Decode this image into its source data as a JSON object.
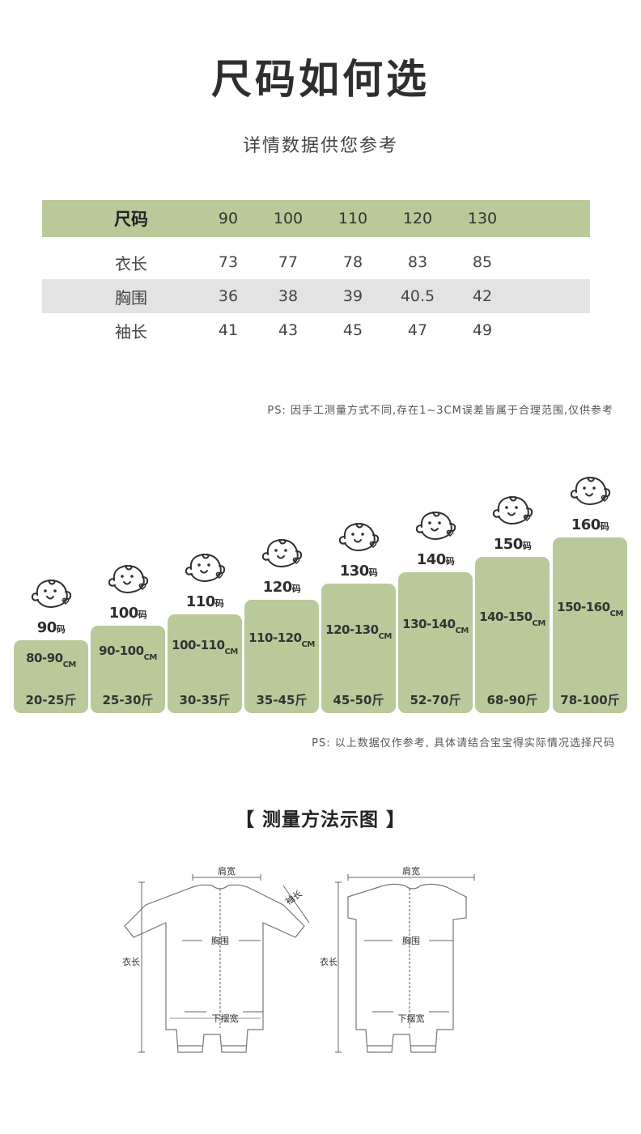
{
  "title": "尺码如何选",
  "subtitle": "详情数据供您参考",
  "size_table": {
    "header": {
      "label": "尺码",
      "values": [
        "90",
        "100",
        "110",
        "120",
        "130"
      ]
    },
    "rows": [
      {
        "label": "衣长",
        "values": [
          "73",
          "77",
          "78",
          "83",
          "85"
        ]
      },
      {
        "label": "胸围",
        "values": [
          "36",
          "38",
          "39",
          "40.5",
          "42"
        ]
      },
      {
        "label": "袖长",
        "values": [
          "41",
          "43",
          "45",
          "47",
          "49"
        ]
      }
    ]
  },
  "note_1": "PS: 因手工测量方式不同,存在1~3CM误差皆属于合理范围,仅供参考",
  "size_chart": {
    "bar_color": "#b9c99a",
    "size_unit": "码",
    "height_unit": "CM",
    "items": [
      {
        "size": "90",
        "height": "80-90",
        "weight": "20-25斤"
      },
      {
        "size": "100",
        "height": "90-100",
        "weight": "25-30斤"
      },
      {
        "size": "110",
        "height": "100-110",
        "weight": "30-35斤"
      },
      {
        "size": "120",
        "height": "110-120",
        "weight": "35-45斤"
      },
      {
        "size": "130",
        "height": "120-130",
        "weight": "45-50斤"
      },
      {
        "size": "140",
        "height": "130-140",
        "weight": "52-70斤"
      },
      {
        "size": "150",
        "height": "140-150",
        "weight": "68-90斤"
      },
      {
        "size": "160",
        "height": "150-160",
        "weight": "78-100斤"
      }
    ]
  },
  "note_2": "PS: 以上数据仅作参考, 具体请结合宝宝得实际情况选择尺码",
  "method_title": "【 测量方法示图 】",
  "diagram": {
    "long_sleeve": {
      "shoulder": "肩宽",
      "sleeve": "袖长",
      "chest": "胸围",
      "length": "衣长",
      "hem": "下摆宽"
    },
    "short_sleeve": {
      "shoulder": "肩宽",
      "chest": "胸围",
      "length": "衣长",
      "hem": "下摆宽"
    }
  }
}
